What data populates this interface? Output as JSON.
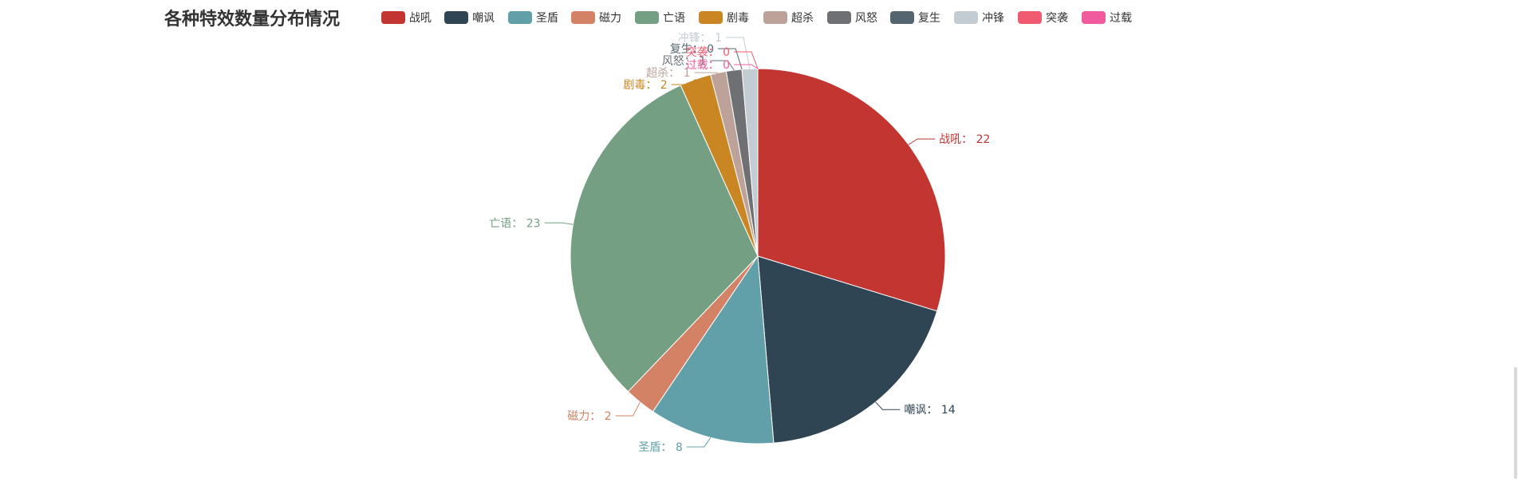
{
  "chart_data": {
    "type": "pie",
    "title": "各种特效数量分布情况",
    "label_separator": "：",
    "slices": [
      {
        "name": "战吼",
        "value": 22,
        "color": "#c23531"
      },
      {
        "name": "嘲讽",
        "value": 14,
        "color": "#2f4554"
      },
      {
        "name": "圣盾",
        "value": 8,
        "color": "#61a0a8"
      },
      {
        "name": "磁力",
        "value": 2,
        "color": "#d48265"
      },
      {
        "name": "亡语",
        "value": 23,
        "color": "#749f83"
      },
      {
        "name": "剧毒",
        "value": 2,
        "color": "#ca8622"
      },
      {
        "name": "超杀",
        "value": 1,
        "color": "#bda29a"
      },
      {
        "name": "风怒",
        "value": 1,
        "color": "#6e7074"
      },
      {
        "name": "复生",
        "value": 0,
        "color": "#546570"
      },
      {
        "name": "冲锋",
        "value": 1,
        "color": "#c4ccd3"
      },
      {
        "name": "突袭",
        "value": 0,
        "color": "#f05b72"
      },
      {
        "name": "过载",
        "value": 0,
        "color": "#ef5b9c"
      }
    ],
    "legend_position": "top"
  }
}
